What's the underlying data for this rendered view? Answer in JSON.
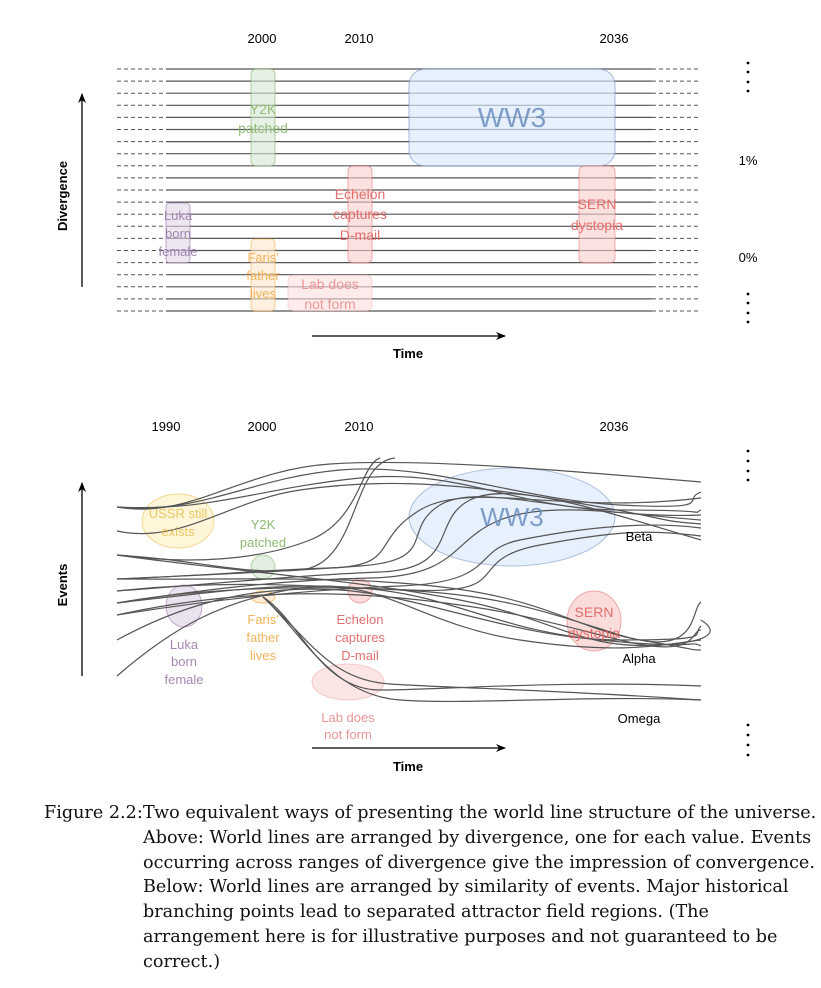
{
  "figure": {
    "top_diagram": {
      "name": "divergence-arrangement",
      "year_labels": [
        "2000",
        "2010",
        "2036"
      ],
      "y_axis_label": "Divergence",
      "x_axis_label": "Time",
      "right_labels": {
        "top_ellipsis": "⋮",
        "one_percent": "1%",
        "zero_percent": "0%",
        "bottom_ellipsis": "⋮"
      },
      "worldline_count": 21,
      "events": [
        {
          "id": "y2k",
          "lines": [
            "Y2K",
            "patched"
          ],
          "color": "#82b366",
          "fill": "#d5e8d4"
        },
        {
          "id": "ww3",
          "lines": [
            "WW3"
          ],
          "color": "#6c8ebf",
          "fill": "#dae8fc"
        },
        {
          "id": "luka",
          "lines": [
            "Luka",
            "born",
            "female"
          ],
          "color": "#9673a6",
          "fill": "#e1d5e7"
        },
        {
          "id": "faris",
          "lines": [
            "Faris'",
            "father",
            "lives"
          ],
          "color": "#f0a030",
          "fill": "#ffe6cc"
        },
        {
          "id": "echelon",
          "lines": [
            "Echelon",
            "captures",
            "D-mail"
          ],
          "color": "#e06060",
          "fill": "#f8cecc"
        },
        {
          "id": "sern",
          "lines": [
            "SERN",
            "dystopia"
          ],
          "color": "#e06060",
          "fill": "#f8cecc"
        },
        {
          "id": "lab",
          "lines": [
            "Lab does",
            "not form"
          ],
          "color": "#ea8a8a",
          "fill": "#fbe0de"
        }
      ]
    },
    "bottom_diagram": {
      "name": "events-arrangement",
      "year_labels": [
        "1990",
        "2000",
        "2010",
        "2036"
      ],
      "y_axis_label": "Events",
      "x_axis_label": "Time",
      "right_labels": {
        "top_ellipsis": "⋮",
        "bottom_ellipsis": "⋮"
      },
      "attractor_fields": [
        "Beta",
        "Alpha",
        "Omega"
      ],
      "events": [
        {
          "id": "ussr",
          "lines": [
            "USSR still",
            "exists"
          ],
          "color": "#e8c050",
          "fill": "#fff2cc"
        },
        {
          "id": "y2k",
          "lines": [
            "Y2K",
            "patched"
          ],
          "color": "#82b366",
          "fill": "#d5e8d4"
        },
        {
          "id": "ww3",
          "lines": [
            "WW3"
          ],
          "color": "#6c8ebf",
          "fill": "#dae8fc"
        },
        {
          "id": "luka",
          "lines": [
            "Luka",
            "born",
            "female"
          ],
          "color": "#9673a6",
          "fill": "#e1d5e7"
        },
        {
          "id": "faris",
          "lines": [
            "Faris'",
            "father",
            "lives"
          ],
          "color": "#f0a030",
          "fill": "#ffe6cc"
        },
        {
          "id": "echelon",
          "lines": [
            "Echelon",
            "captures",
            "D-mail"
          ],
          "color": "#e06060",
          "fill": "#f8cecc"
        },
        {
          "id": "sern",
          "lines": [
            "SERN",
            "dystopia"
          ],
          "color": "#e06060",
          "fill": "#f8cecc"
        },
        {
          "id": "lab",
          "lines": [
            "Lab does",
            "not form"
          ],
          "color": "#ea8a8a",
          "fill": "#fbe0de"
        }
      ]
    },
    "caption": {
      "label": "Figure 2.2:",
      "lines": [
        "Two equivalent ways of presenting the world line structure of the universe.",
        "Above: World lines are arranged by divergence, one for each value. Events",
        "occurring across ranges of divergence give the impression of convergence.",
        "Below: World lines are arranged by similarity of events. Major historical",
        "branching points lead to separated attractor field regions. (The",
        "arrangement here is for illustrative purposes and not guaranteed to be",
        "correct.)"
      ]
    }
  }
}
